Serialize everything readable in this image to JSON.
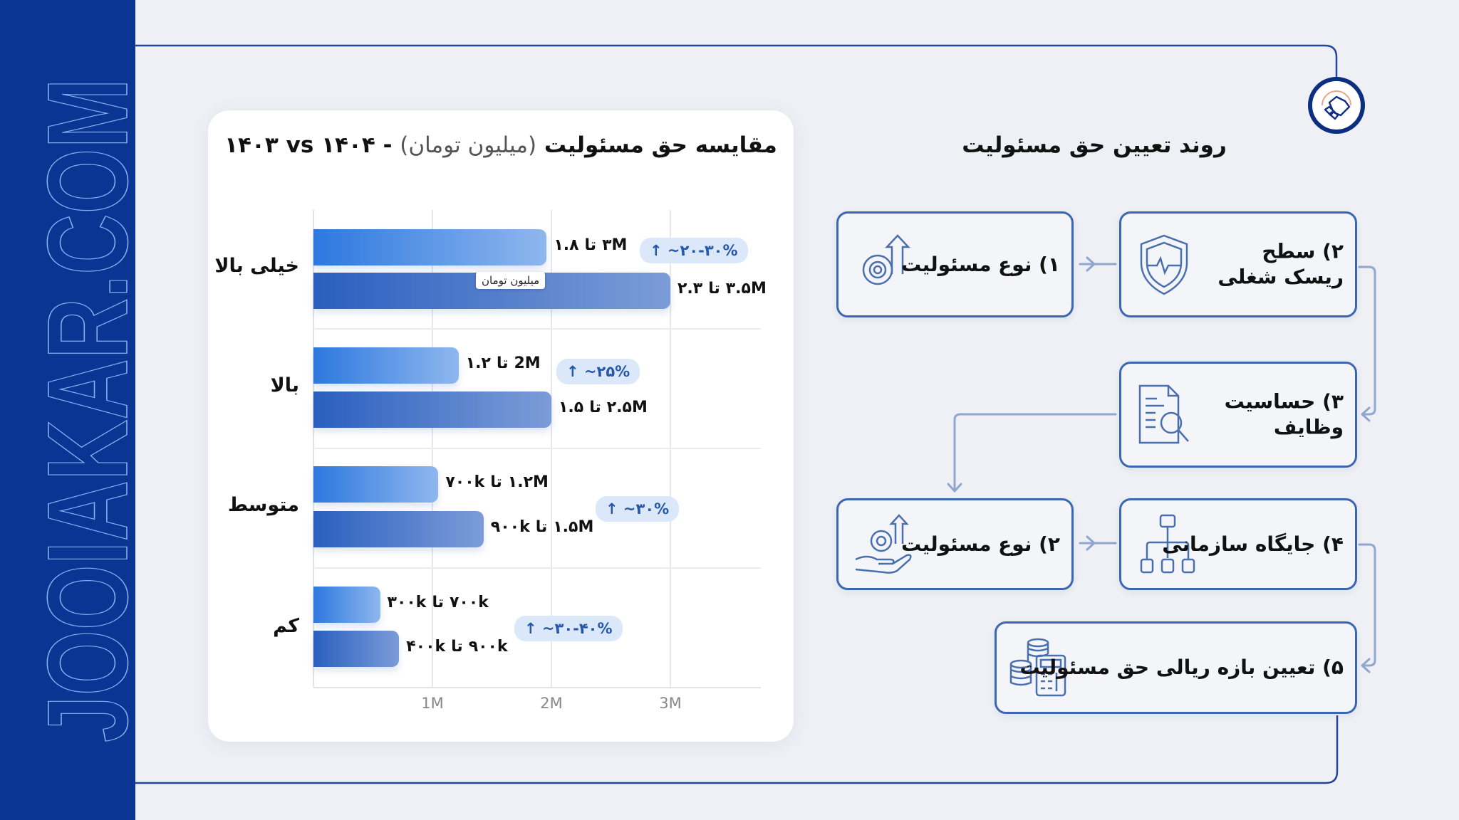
{
  "watermark": {
    "text": "JOOIAKAR.COM"
  },
  "colors": {
    "sidebar": "#0b3593",
    "bar_1403": "#2d78df",
    "bar_1404": "#2a5fbf",
    "badge_bg": "#dbe8fa",
    "badge_text": "#2757a8",
    "box_border": "#3a67b0"
  },
  "logo": {
    "icon": "handshake-icon"
  },
  "chart_data": {
    "type": "bar",
    "orientation": "horizontal",
    "title": {
      "main": "مقایسه حق مسئولیت",
      "unit": "(میلیون تومان)",
      "dash": "-",
      "years": "۱۴۰۳ vs ۱۴۰۴"
    },
    "categories": [
      "خیلی بالا",
      "بالا",
      "متوسط",
      "کم"
    ],
    "series": [
      {
        "values": [
          1.96,
          1.22,
          1.05,
          0.56
        ]
      },
      {
        "values": [
          3.0,
          2.0,
          1.43,
          0.72
        ]
      }
    ],
    "range_labels": [
      [
        {
          "from": "۱.۸",
          "to": "۳M"
        },
        {
          "from": "۲.۳",
          "to": "۳.۵M"
        }
      ],
      [
        {
          "from": "۱.۲",
          "to": "2M"
        },
        {
          "from": "۱.۵",
          "to": "۲.۵M"
        }
      ],
      [
        {
          "from": "۷۰۰k",
          "to": "۱.۲M"
        },
        {
          "from": "۹۰۰k",
          "to": "۱.۵M"
        }
      ],
      [
        {
          "from": "۳۰۰k",
          "to": "۷۰۰k"
        },
        {
          "from": "۴۰۰k",
          "to": "۹۰۰k"
        }
      ]
    ],
    "range_connector": "تا",
    "change_badges": [
      "↑ ~۲۰-۳۰%",
      "↑ ~۲۵%",
      "↑ ~۳۰%",
      "↑ ~۳۰-۴۰%"
    ],
    "x_ticks": [
      "1M",
      "2M",
      "3M"
    ],
    "xlim": [
      0,
      3.75
    ],
    "grid": true,
    "tooltip": "میلیون تومان"
  },
  "flow": {
    "title": "روند تعیین حق مسئولیت",
    "steps": [
      {
        "label": "۱) نوع مسئولیت",
        "icon": "gear-arrow-up-icon"
      },
      {
        "label": "۲) سطح ریسک شغلی",
        "icon": "shield-heartbeat-icon"
      },
      {
        "label": "۳) حساسیت وظایف",
        "icon": "document-search-icon"
      },
      {
        "label": "۴) جایگاه سازمانی",
        "icon": "org-chart-icon"
      },
      {
        "label": "۲) نوع مسئولیت",
        "icon": "hand-gear-icon"
      },
      {
        "label": "۵) تعیین بازه ریالی حق مسئولیت",
        "icon": "coins-calculator-icon"
      }
    ]
  }
}
